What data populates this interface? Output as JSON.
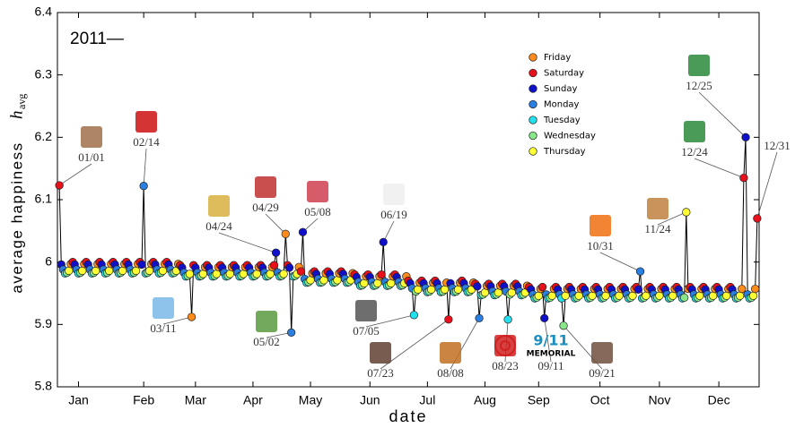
{
  "chart_data": {
    "type": "scatter",
    "title": "2011—",
    "xlabel": "date",
    "ylabel": "average happiness",
    "ylabel_symbol": "h",
    "ylabel_subscript": "avg",
    "xlim": [
      0,
      366
    ],
    "ylim": [
      5.8,
      6.4
    ],
    "yticks": [
      5.8,
      5.9,
      6,
      6.1,
      6.2,
      6.3,
      6.4
    ],
    "xticks": [
      {
        "value": 11,
        "label": "Jan"
      },
      {
        "value": 45,
        "label": "Feb"
      },
      {
        "value": 72,
        "label": "Mar"
      },
      {
        "value": 102,
        "label": "Apr"
      },
      {
        "value": 132,
        "label": "May"
      },
      {
        "value": 163,
        "label": "Jun"
      },
      {
        "value": 193,
        "label": "Jul"
      },
      {
        "value": 223,
        "label": "Aug"
      },
      {
        "value": 251,
        "label": "Sep"
      },
      {
        "value": 283,
        "label": "Oct"
      },
      {
        "value": 314,
        "label": "Nov"
      },
      {
        "value": 345,
        "label": "Dec"
      }
    ],
    "connect": true,
    "legend": "upper right",
    "series": [
      {
        "name": "Friday",
        "color": "#ff8c1a",
        "x": [
          7,
          14,
          21,
          28,
          35,
          42,
          49,
          56,
          63,
          70,
          77,
          84,
          91,
          98,
          105,
          112,
          119,
          126,
          133,
          140,
          147,
          154,
          161,
          168,
          175,
          182,
          189,
          196,
          203,
          210,
          217,
          224,
          231,
          238,
          245,
          252,
          259,
          266,
          273,
          280,
          287,
          294,
          301,
          308,
          315,
          322,
          329,
          336,
          343,
          350,
          357,
          364
        ],
        "values": [
          5.997,
          5.997,
          5.997,
          5.997,
          5.997,
          5.997,
          5.997,
          5.997,
          5.997,
          5.912,
          5.992,
          5.992,
          5.992,
          5.992,
          5.992,
          5.992,
          6.045,
          5.992,
          5.982,
          5.982,
          5.982,
          5.982,
          5.977,
          5.977,
          5.977,
          5.977,
          5.967,
          5.967,
          5.967,
          5.967,
          5.967,
          5.962,
          5.962,
          5.962,
          5.962,
          5.957,
          5.957,
          5.957,
          5.957,
          5.957,
          5.957,
          5.957,
          5.957,
          5.957,
          5.957,
          5.957,
          5.957,
          5.957,
          5.957,
          5.957,
          5.957,
          5.957
        ]
      },
      {
        "name": "Saturday",
        "color": "#e8101a",
        "x": [
          1,
          8,
          15,
          22,
          29,
          36,
          43,
          50,
          57,
          64,
          71,
          78,
          85,
          92,
          99,
          106,
          113,
          120,
          127,
          134,
          141,
          148,
          155,
          162,
          169,
          176,
          183,
          190,
          197,
          204,
          211,
          218,
          225,
          232,
          239,
          246,
          253,
          260,
          267,
          274,
          281,
          288,
          295,
          302,
          309,
          316,
          323,
          330,
          337,
          344,
          351,
          358,
          365
        ],
        "values": [
          6.123,
          6.0,
          6.0,
          6.0,
          6.0,
          6.0,
          6.0,
          6.0,
          6.0,
          5.995,
          5.995,
          5.995,
          5.995,
          5.995,
          5.995,
          5.995,
          5.995,
          5.995,
          5.985,
          5.985,
          5.985,
          5.985,
          5.98,
          5.98,
          5.98,
          5.98,
          5.97,
          5.97,
          5.97,
          5.908,
          5.97,
          5.965,
          5.965,
          5.965,
          5.965,
          5.96,
          5.96,
          5.96,
          5.96,
          5.96,
          5.96,
          5.96,
          5.96,
          5.96,
          5.96,
          5.96,
          5.96,
          5.96,
          5.96,
          5.96,
          5.96,
          6.135,
          6.07
        ]
      },
      {
        "name": "Sunday",
        "color": "#1010c8",
        "x": [
          2,
          9,
          16,
          23,
          30,
          37,
          44,
          51,
          58,
          65,
          72,
          79,
          86,
          93,
          100,
          107,
          114,
          121,
          128,
          135,
          142,
          149,
          156,
          163,
          170,
          177,
          184,
          191,
          198,
          205,
          212,
          219,
          226,
          233,
          240,
          247,
          254,
          261,
          268,
          275,
          282,
          289,
          296,
          303,
          310,
          317,
          324,
          331,
          338,
          345,
          352,
          359
        ],
        "values": [
          5.996,
          5.996,
          5.996,
          5.996,
          5.996,
          5.996,
          5.996,
          5.996,
          5.996,
          5.991,
          5.991,
          5.991,
          5.991,
          5.991,
          5.991,
          5.991,
          6.015,
          5.991,
          6.048,
          5.981,
          5.981,
          5.981,
          5.976,
          5.976,
          6.032,
          5.976,
          5.966,
          5.966,
          5.966,
          5.966,
          5.966,
          5.961,
          5.961,
          5.961,
          5.961,
          5.956,
          5.91,
          5.956,
          5.956,
          5.956,
          5.956,
          5.956,
          5.956,
          5.956,
          5.956,
          5.956,
          5.956,
          5.956,
          5.956,
          5.956,
          5.956,
          6.2
        ]
      },
      {
        "name": "Monday",
        "color": "#2a7fe0",
        "x": [
          3,
          10,
          17,
          24,
          31,
          38,
          45,
          52,
          59,
          66,
          73,
          80,
          87,
          94,
          101,
          108,
          115,
          122,
          129,
          136,
          143,
          150,
          157,
          164,
          171,
          178,
          185,
          192,
          199,
          206,
          213,
          220,
          227,
          234,
          241,
          248,
          255,
          262,
          269,
          276,
          283,
          290,
          297,
          304,
          311,
          318,
          325,
          332,
          339,
          346,
          353,
          360
        ],
        "values": [
          5.988,
          5.988,
          5.988,
          5.988,
          5.988,
          5.988,
          6.122,
          5.988,
          5.988,
          5.983,
          5.983,
          5.983,
          5.983,
          5.983,
          5.983,
          5.983,
          5.983,
          5.887,
          5.973,
          5.973,
          5.973,
          5.973,
          5.968,
          5.968,
          5.968,
          5.968,
          5.958,
          5.958,
          5.958,
          5.958,
          5.958,
          5.91,
          5.953,
          5.953,
          5.953,
          5.948,
          5.948,
          5.948,
          5.948,
          5.948,
          5.948,
          5.948,
          5.948,
          5.985,
          5.948,
          5.948,
          5.948,
          5.948,
          5.948,
          5.948,
          5.948,
          5.948
        ]
      },
      {
        "name": "Tuesday",
        "color": "#22e0ee",
        "x": [
          4,
          11,
          18,
          25,
          32,
          39,
          46,
          53,
          60,
          67,
          74,
          81,
          88,
          95,
          102,
          109,
          116,
          123,
          130,
          137,
          144,
          151,
          158,
          165,
          172,
          179,
          186,
          193,
          200,
          207,
          214,
          221,
          228,
          235,
          242,
          249,
          256,
          263,
          270,
          277,
          284,
          291,
          298,
          305,
          312,
          319,
          326,
          333,
          340,
          347,
          354,
          361
        ],
        "values": [
          5.982,
          5.982,
          5.982,
          5.982,
          5.982,
          5.982,
          5.982,
          5.982,
          5.982,
          5.977,
          5.977,
          5.977,
          5.977,
          5.977,
          5.977,
          5.977,
          5.977,
          5.977,
          5.967,
          5.967,
          5.967,
          5.967,
          5.962,
          5.962,
          5.962,
          5.962,
          5.915,
          5.952,
          5.952,
          5.952,
          5.952,
          5.947,
          5.947,
          5.908,
          5.947,
          5.942,
          5.942,
          5.942,
          5.942,
          5.942,
          5.942,
          5.942,
          5.942,
          5.942,
          5.942,
          5.942,
          5.942,
          5.942,
          5.942,
          5.942,
          5.942,
          5.942
        ]
      },
      {
        "name": "Wednesday",
        "color": "#88e888",
        "x": [
          5,
          12,
          19,
          26,
          33,
          40,
          47,
          54,
          61,
          68,
          75,
          82,
          89,
          96,
          103,
          110,
          117,
          124,
          131,
          138,
          145,
          152,
          159,
          166,
          173,
          180,
          187,
          194,
          201,
          208,
          215,
          222,
          229,
          236,
          243,
          250,
          257,
          264,
          271,
          278,
          285,
          292,
          299,
          306,
          313,
          320,
          327,
          334,
          341,
          348,
          355,
          362
        ],
        "values": [
          5.983,
          5.983,
          5.983,
          5.983,
          5.983,
          5.983,
          5.983,
          5.983,
          5.983,
          5.978,
          5.978,
          5.978,
          5.978,
          5.978,
          5.978,
          5.978,
          5.978,
          5.978,
          5.968,
          5.968,
          5.968,
          5.968,
          5.963,
          5.963,
          5.963,
          5.963,
          5.953,
          5.953,
          5.953,
          5.953,
          5.953,
          5.948,
          5.948,
          5.948,
          5.948,
          5.943,
          5.943,
          5.898,
          5.943,
          5.943,
          5.943,
          5.943,
          5.943,
          5.943,
          5.943,
          5.943,
          5.943,
          5.943,
          5.943,
          5.943,
          5.943,
          5.943
        ]
      },
      {
        "name": "Thursday",
        "color": "#ffff33",
        "x": [
          6,
          13,
          20,
          27,
          34,
          41,
          48,
          55,
          62,
          69,
          76,
          83,
          90,
          97,
          104,
          111,
          118,
          125,
          132,
          139,
          146,
          153,
          160,
          167,
          174,
          181,
          188,
          195,
          202,
          209,
          216,
          223,
          230,
          237,
          244,
          251,
          258,
          265,
          272,
          279,
          286,
          293,
          300,
          307,
          314,
          321,
          328,
          335,
          342,
          349,
          356,
          363
        ],
        "values": [
          5.986,
          5.986,
          5.986,
          5.986,
          5.986,
          5.986,
          5.986,
          5.986,
          5.986,
          5.981,
          5.981,
          5.981,
          5.981,
          5.981,
          5.981,
          5.981,
          5.981,
          5.981,
          5.971,
          5.971,
          5.971,
          5.971,
          5.966,
          5.966,
          5.966,
          5.966,
          5.956,
          5.956,
          5.956,
          5.956,
          5.956,
          5.951,
          5.951,
          5.951,
          5.951,
          5.946,
          5.946,
          5.946,
          5.946,
          5.946,
          5.946,
          5.946,
          5.946,
          5.946,
          5.946,
          5.946,
          6.08,
          5.946,
          5.946,
          5.946,
          5.946,
          5.946
        ]
      }
    ],
    "annotations": [
      "01/01",
      "02/14",
      "03/11",
      "04/24",
      "04/29",
      "05/02",
      "05/08",
      "06/19",
      "07/05",
      "07/23",
      "08/08",
      "08/23",
      "09/11",
      "09/21",
      "10/31",
      "11/24",
      "12/24",
      "12/25",
      "12/31"
    ],
    "icon_texts": [
      "9/11",
      "MEMORIAL"
    ]
  }
}
